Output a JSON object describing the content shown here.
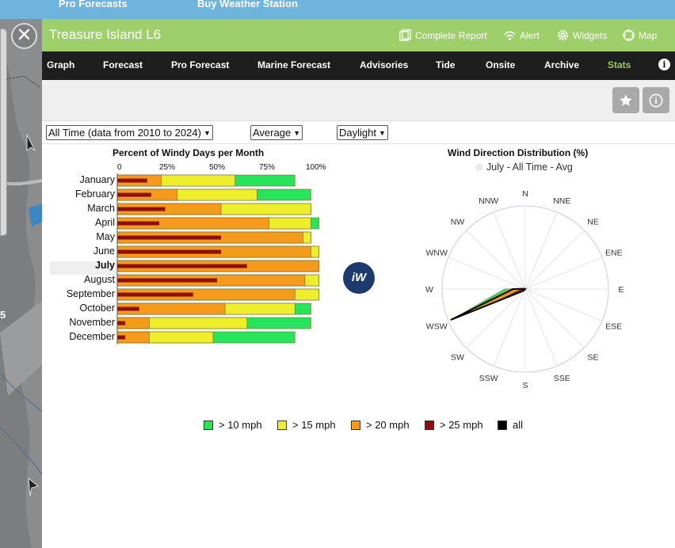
{
  "site_nav": {
    "pro_forecasts": "Pro Forecasts",
    "buy_weather_station": "Buy Weather Station"
  },
  "close_label": "✕",
  "station": {
    "title": "Treasure Island L6"
  },
  "header_links": {
    "complete_report": "Complete Report",
    "alert": "Alert",
    "widgets": "Widgets",
    "map": "Map"
  },
  "tabs": [
    "Graph",
    "Forecast",
    "Pro Forecast",
    "Marine Forecast",
    "Advisories",
    "Tide",
    "Onsite",
    "Archive",
    "Stats"
  ],
  "active_tab": "Stats",
  "info_label": "i",
  "filters": {
    "range": "All Time (data from 2010 to 2024)",
    "statistic": "Average",
    "period": "Daylight"
  },
  "logo_text": "iW",
  "colors": {
    "gt10": "#27e55a",
    "gt15": "#eeee2a",
    "gt20": "#f59a1a",
    "gt25": "#8e0e0e",
    "all": "#000000"
  },
  "chart_data": [
    {
      "type": "bar",
      "title": "Percent of Windy Days per Month",
      "orientation": "horizontal",
      "stacked": false,
      "x_ticks": [
        "0",
        "25%",
        "50%",
        "75%",
        "100%"
      ],
      "xlim": [
        0,
        100
      ],
      "categories": [
        "January",
        "February",
        "March",
        "April",
        "May",
        "June",
        "July",
        "August",
        "September",
        "October",
        "November",
        "December"
      ],
      "highlight": "July",
      "series": [
        {
          "name": "> 10 mph",
          "values": [
            89,
            97,
            97,
            101,
            97,
            101,
            101,
            101,
            101,
            97,
            97,
            89
          ]
        },
        {
          "name": "> 15 mph",
          "values": [
            59,
            70,
            97,
            97,
            97,
            101,
            101,
            101,
            101,
            89,
            65,
            48
          ]
        },
        {
          "name": "> 20 mph",
          "values": [
            22,
            30,
            52,
            76,
            93,
            97,
            101,
            94,
            89,
            54,
            16,
            16
          ]
        },
        {
          "name": "> 25 mph",
          "values": [
            15,
            17,
            24,
            21,
            52,
            52,
            65,
            50,
            38,
            11,
            4,
            4
          ]
        }
      ]
    },
    {
      "type": "radar",
      "title": "Wind Direction Distribution (%)",
      "subtitle": "July - All Time - Avg",
      "directions": [
        "N",
        "NNE",
        "NE",
        "ENE",
        "E",
        "ESE",
        "SE",
        "SSE",
        "S",
        "SSW",
        "SW",
        "WSW",
        "W",
        "WNW",
        "NW",
        "NNW"
      ],
      "series": [
        {
          "name": "> 10 mph",
          "values": [
            0,
            0,
            0,
            0,
            0,
            0,
            0,
            0,
            0,
            0,
            2,
            95,
            25,
            2,
            0,
            0
          ]
        },
        {
          "name": "> 15 mph",
          "values": [
            0,
            0,
            0,
            0,
            0,
            0,
            0,
            0,
            0,
            0,
            1,
            92,
            20,
            1,
            0,
            0
          ]
        },
        {
          "name": "> 20 mph",
          "values": [
            0,
            0,
            0,
            0,
            0,
            0,
            0,
            0,
            0,
            0,
            1,
            70,
            12,
            1,
            0,
            0
          ]
        },
        {
          "name": "> 25 mph",
          "values": [
            0,
            0,
            0,
            0,
            0,
            0,
            0,
            0,
            0,
            0,
            0,
            35,
            5,
            0,
            0,
            0
          ]
        },
        {
          "name": "all",
          "values": [
            0,
            0,
            0,
            0,
            0,
            0,
            0,
            0,
            0,
            0,
            3,
            97,
            15,
            1,
            0,
            0
          ]
        }
      ],
      "rmax": 100
    }
  ],
  "legend": [
    "> 10 mph",
    "> 15 mph",
    "> 20 mph",
    "> 25 mph",
    "all"
  ],
  "map_labels": {
    "edge_number": "5"
  }
}
